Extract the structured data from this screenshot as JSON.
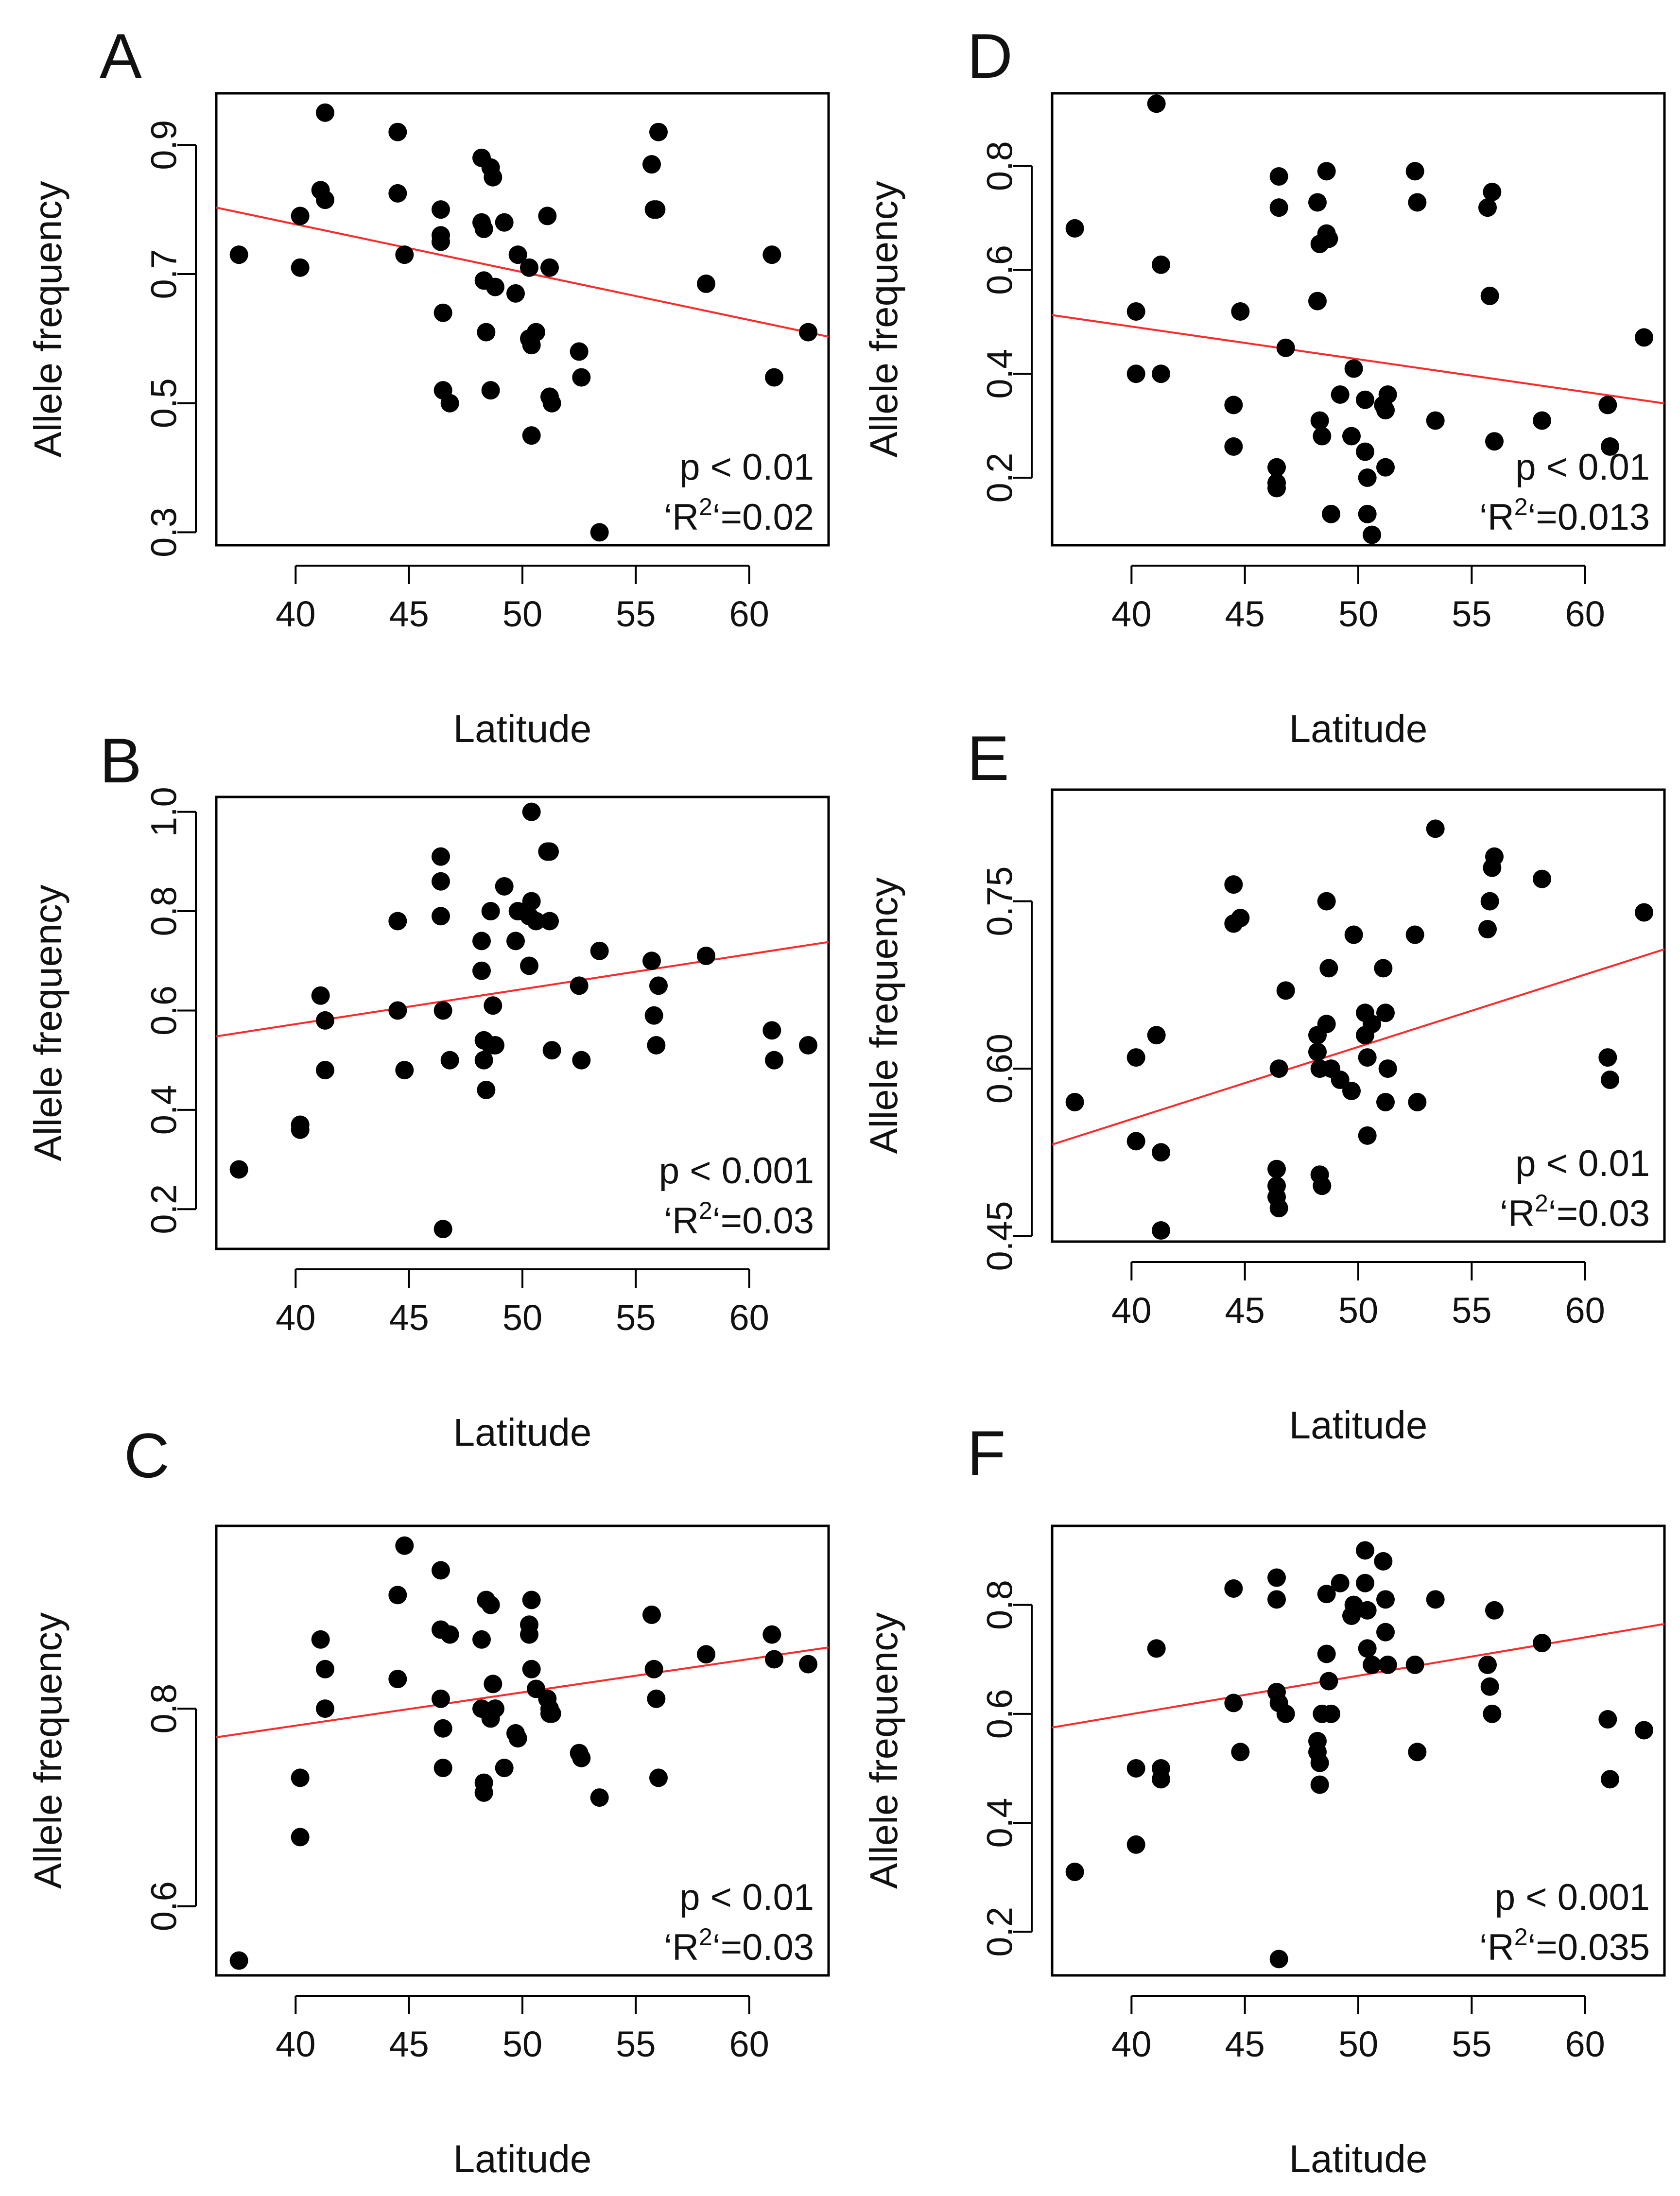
{
  "figure": {
    "marker_color": "#000000",
    "fit_line_color": "#ff2a2a",
    "frame_color": "#000000"
  },
  "chart_data": [
    {
      "panel": "A",
      "type": "scatter",
      "xlabel": "Latitude",
      "ylabel": "Allele frequency",
      "xlim": [
        36.5,
        63.5
      ],
      "ylim": [
        0.28,
        0.98
      ],
      "xticks": [
        40,
        45,
        50,
        55,
        60
      ],
      "yticks": [
        0.3,
        0.5,
        0.7,
        0.9
      ],
      "ytick_labels": [
        "0.3",
        "0.5",
        "0.7",
        "0.9"
      ],
      "x": [
        37.5,
        40.2,
        40.2,
        41.1,
        41.3,
        41.3,
        44.5,
        44.5,
        44.8,
        46.4,
        46.4,
        46.4,
        46.5,
        46.5,
        46.8,
        48.2,
        48.2,
        48.3,
        48.3,
        48.4,
        48.6,
        48.6,
        48.7,
        48.8,
        49.2,
        49.7,
        49.8,
        50.3,
        50.3,
        50.4,
        50.4,
        50.6,
        51.1,
        51.2,
        51.2,
        51.3,
        52.5,
        52.6,
        53.4,
        55.7,
        55.8,
        55.9,
        56.0,
        58.1,
        61.0,
        61.1,
        62.6
      ],
      "y": [
        0.73,
        0.79,
        0.71,
        0.83,
        0.815,
        0.95,
        0.92,
        0.825,
        0.73,
        0.8,
        0.76,
        0.75,
        0.64,
        0.52,
        0.5,
        0.88,
        0.78,
        0.77,
        0.69,
        0.61,
        0.865,
        0.52,
        0.85,
        0.68,
        0.78,
        0.67,
        0.73,
        0.71,
        0.6,
        0.59,
        0.45,
        0.61,
        0.79,
        0.71,
        0.51,
        0.5,
        0.58,
        0.54,
        0.3,
        0.87,
        0.8,
        0.8,
        0.92,
        0.685,
        0.73,
        0.54,
        0.61
      ],
      "fit_line": {
        "x": [
          36.5,
          63.5
        ],
        "y": [
          0.803,
          0.603
        ]
      },
      "annotation": {
        "p": "p < 0.01",
        "r2_prefix": "‘R",
        "r2_sup": "2",
        "r2_suffix": "‘=0.02"
      }
    },
    {
      "panel": "B",
      "type": "scatter",
      "xlabel": "Latitude",
      "ylabel": "Allele frequency",
      "xlim": [
        36.5,
        63.5
      ],
      "ylim": [
        0.12,
        1.03
      ],
      "xticks": [
        40,
        45,
        50,
        55,
        60
      ],
      "yticks": [
        0.2,
        0.4,
        0.6,
        0.8,
        1.0
      ],
      "ytick_labels": [
        "0.2",
        "0.4",
        "0.6",
        "0.8",
        "1.0"
      ],
      "x": [
        37.5,
        40.2,
        40.2,
        41.1,
        41.3,
        41.3,
        44.5,
        44.5,
        44.8,
        46.4,
        46.4,
        46.4,
        46.5,
        46.5,
        46.8,
        48.2,
        48.2,
        48.3,
        48.3,
        48.4,
        48.6,
        48.6,
        48.7,
        48.8,
        49.2,
        49.7,
        49.8,
        50.3,
        50.3,
        50.4,
        50.4,
        50.6,
        51.1,
        51.2,
        51.2,
        51.3,
        52.5,
        52.6,
        53.4,
        55.7,
        55.8,
        55.9,
        56.0,
        58.1,
        61.0,
        61.1,
        62.6
      ],
      "y": [
        0.28,
        0.37,
        0.36,
        0.63,
        0.58,
        0.48,
        0.78,
        0.6,
        0.48,
        0.91,
        0.86,
        0.79,
        0.6,
        0.16,
        0.5,
        0.74,
        0.68,
        0.54,
        0.5,
        0.44,
        0.53,
        0.8,
        0.61,
        0.53,
        0.85,
        0.74,
        0.8,
        0.79,
        0.69,
        1.0,
        0.82,
        0.78,
        0.92,
        0.92,
        0.78,
        0.52,
        0.65,
        0.5,
        0.72,
        0.7,
        0.59,
        0.53,
        0.65,
        0.71,
        0.56,
        0.5,
        0.53
      ],
      "fit_line": {
        "x": [
          36.5,
          63.5
        ],
        "y": [
          0.548,
          0.738
        ]
      },
      "annotation": {
        "p": "p < 0.001",
        "r2_prefix": "‘R",
        "r2_sup": "2",
        "r2_suffix": "‘=0.03"
      }
    },
    {
      "panel": "C",
      "type": "scatter",
      "xlabel": "Latitude",
      "ylabel": "Allele frequency",
      "xlim": [
        36.5,
        63.5
      ],
      "ylim": [
        0.53,
        0.985
      ],
      "xticks": [
        40,
        45,
        50,
        55,
        60
      ],
      "yticks": [
        0.6,
        0.8
      ],
      "ytick_labels": [
        "0.6",
        "0.8"
      ],
      "x": [
        37.5,
        40.2,
        40.2,
        41.1,
        41.3,
        41.3,
        44.5,
        44.5,
        44.8,
        46.4,
        46.4,
        46.4,
        46.5,
        46.5,
        46.8,
        48.2,
        48.2,
        48.3,
        48.3,
        48.4,
        48.6,
        48.6,
        48.7,
        48.8,
        49.2,
        49.7,
        49.8,
        50.3,
        50.3,
        50.4,
        50.4,
        50.6,
        51.1,
        51.2,
        51.2,
        51.3,
        52.5,
        52.6,
        53.4,
        55.7,
        55.8,
        55.9,
        56.0,
        58.1,
        61.0,
        61.1,
        62.6
      ],
      "y": [
        0.545,
        0.73,
        0.67,
        0.87,
        0.84,
        0.8,
        0.915,
        0.83,
        0.965,
        0.94,
        0.88,
        0.81,
        0.78,
        0.74,
        0.875,
        0.87,
        0.8,
        0.725,
        0.715,
        0.91,
        0.905,
        0.79,
        0.825,
        0.8,
        0.74,
        0.775,
        0.77,
        0.885,
        0.875,
        0.91,
        0.84,
        0.82,
        0.81,
        0.8,
        0.795,
        0.795,
        0.755,
        0.75,
        0.71,
        0.895,
        0.84,
        0.81,
        0.73,
        0.855,
        0.875,
        0.85,
        0.845
      ],
      "fit_line": {
        "x": [
          36.5,
          63.5
        ],
        "y": [
          0.771,
          0.862
        ]
      },
      "annotation": {
        "p": "p < 0.01",
        "r2_prefix": "‘R",
        "r2_sup": "2",
        "r2_suffix": "‘=0.03"
      }
    },
    {
      "panel": "D",
      "type": "scatter",
      "xlabel": "Latitude",
      "ylabel": "Allele frequency",
      "xlim": [
        36.5,
        63.5
      ],
      "ylim": [
        0.07,
        0.94
      ],
      "xticks": [
        40,
        45,
        50,
        55,
        60
      ],
      "yticks": [
        0.2,
        0.4,
        0.6,
        0.8
      ],
      "ytick_labels": [
        "0.2",
        "0.4",
        "0.6",
        "0.8"
      ],
      "x": [
        37.5,
        40.2,
        40.2,
        41.1,
        41.3,
        41.3,
        44.5,
        44.5,
        44.8,
        46.4,
        46.4,
        46.4,
        46.5,
        46.5,
        46.8,
        48.2,
        48.2,
        48.3,
        48.3,
        48.4,
        48.6,
        48.6,
        48.7,
        48.8,
        49.2,
        49.7,
        49.8,
        50.3,
        50.3,
        50.4,
        50.4,
        50.6,
        51.1,
        51.2,
        51.2,
        51.3,
        52.5,
        52.6,
        53.4,
        55.7,
        55.8,
        55.9,
        56.0,
        58.1,
        61.0,
        61.1,
        62.6
      ],
      "y": [
        0.68,
        0.52,
        0.4,
        0.92,
        0.61,
        0.4,
        0.34,
        0.26,
        0.52,
        0.22,
        0.19,
        0.18,
        0.78,
        0.72,
        0.45,
        0.54,
        0.73,
        0.65,
        0.31,
        0.28,
        0.67,
        0.79,
        0.66,
        0.13,
        0.36,
        0.28,
        0.41,
        0.35,
        0.25,
        0.2,
        0.13,
        0.09,
        0.34,
        0.33,
        0.22,
        0.36,
        0.79,
        0.73,
        0.31,
        0.72,
        0.55,
        0.75,
        0.27,
        0.31,
        0.34,
        0.26,
        0.47
      ],
      "fit_line": {
        "x": [
          36.5,
          63.5
        ],
        "y": [
          0.513,
          0.343
        ]
      },
      "annotation": {
        "p": "p < 0.01",
        "r2_prefix": "‘R",
        "r2_sup": "2",
        "r2_suffix": "‘=0.013"
      }
    },
    {
      "panel": "E",
      "type": "scatter",
      "xlabel": "Latitude",
      "ylabel": "Allele frequency",
      "xlim": [
        36.5,
        63.5
      ],
      "ylim": [
        0.445,
        0.85
      ],
      "xticks": [
        40,
        45,
        50,
        55,
        60
      ],
      "yticks": [
        0.45,
        0.6,
        0.75
      ],
      "ytick_labels": [
        "0.45",
        "0.60",
        "0.75"
      ],
      "x": [
        37.5,
        40.2,
        40.2,
        41.1,
        41.3,
        41.3,
        44.5,
        44.5,
        44.8,
        46.4,
        46.4,
        46.4,
        46.5,
        46.5,
        46.8,
        48.2,
        48.2,
        48.3,
        48.3,
        48.4,
        48.6,
        48.6,
        48.7,
        48.8,
        49.2,
        49.7,
        49.8,
        50.3,
        50.3,
        50.4,
        50.4,
        50.6,
        51.1,
        51.2,
        51.2,
        51.3,
        52.5,
        52.6,
        53.4,
        55.7,
        55.8,
        55.9,
        56.0,
        58.1,
        61.0,
        61.1,
        62.6
      ],
      "y": [
        0.57,
        0.61,
        0.535,
        0.63,
        0.525,
        0.455,
        0.765,
        0.73,
        0.735,
        0.51,
        0.495,
        0.485,
        0.475,
        0.6,
        0.67,
        0.63,
        0.615,
        0.6,
        0.505,
        0.495,
        0.64,
        0.75,
        0.69,
        0.6,
        0.59,
        0.58,
        0.72,
        0.65,
        0.63,
        0.61,
        0.54,
        0.64,
        0.69,
        0.65,
        0.57,
        0.6,
        0.72,
        0.57,
        0.815,
        0.725,
        0.75,
        0.78,
        0.79,
        0.77,
        0.61,
        0.59,
        0.74
      ],
      "fit_line": {
        "x": [
          36.5,
          63.5
        ],
        "y": [
          0.532,
          0.707
        ]
      },
      "annotation": {
        "p": "p < 0.01",
        "r2_prefix": "‘R",
        "r2_sup": "2",
        "r2_suffix": "‘=0.03"
      }
    },
    {
      "panel": "F",
      "type": "scatter",
      "xlabel": "Latitude",
      "ylabel": "Allele frequency",
      "xlim": [
        36.5,
        63.5
      ],
      "ylim": [
        0.12,
        0.945
      ],
      "xticks": [
        40,
        45,
        50,
        55,
        60
      ],
      "yticks": [
        0.2,
        0.4,
        0.6,
        0.8
      ],
      "ytick_labels": [
        "0.2",
        "0.4",
        "0.6",
        "0.8"
      ],
      "x": [
        37.5,
        40.2,
        40.2,
        41.1,
        41.3,
        41.3,
        44.5,
        44.5,
        44.8,
        46.4,
        46.4,
        46.4,
        46.5,
        46.5,
        46.8,
        48.2,
        48.2,
        48.3,
        48.3,
        48.4,
        48.6,
        48.6,
        48.7,
        48.8,
        49.2,
        49.7,
        49.8,
        50.3,
        50.3,
        50.4,
        50.4,
        50.6,
        51.1,
        51.2,
        51.2,
        51.3,
        52.5,
        52.6,
        53.4,
        55.7,
        55.8,
        55.9,
        56.0,
        58.1,
        61.0,
        61.1,
        62.6
      ],
      "y": [
        0.31,
        0.5,
        0.36,
        0.72,
        0.5,
        0.48,
        0.83,
        0.62,
        0.53,
        0.85,
        0.81,
        0.64,
        0.15,
        0.62,
        0.6,
        0.55,
        0.53,
        0.51,
        0.47,
        0.6,
        0.71,
        0.82,
        0.66,
        0.6,
        0.84,
        0.78,
        0.8,
        0.9,
        0.84,
        0.79,
        0.72,
        0.69,
        0.88,
        0.81,
        0.75,
        0.69,
        0.69,
        0.53,
        0.81,
        0.69,
        0.65,
        0.6,
        0.79,
        0.73,
        0.59,
        0.48,
        0.57
      ],
      "fit_line": {
        "x": [
          36.5,
          63.5
        ],
        "y": [
          0.575,
          0.765
        ]
      },
      "annotation": {
        "p": "p < 0.001",
        "r2_prefix": "‘R",
        "r2_sup": "2",
        "r2_suffix": "‘=0.035"
      }
    }
  ]
}
